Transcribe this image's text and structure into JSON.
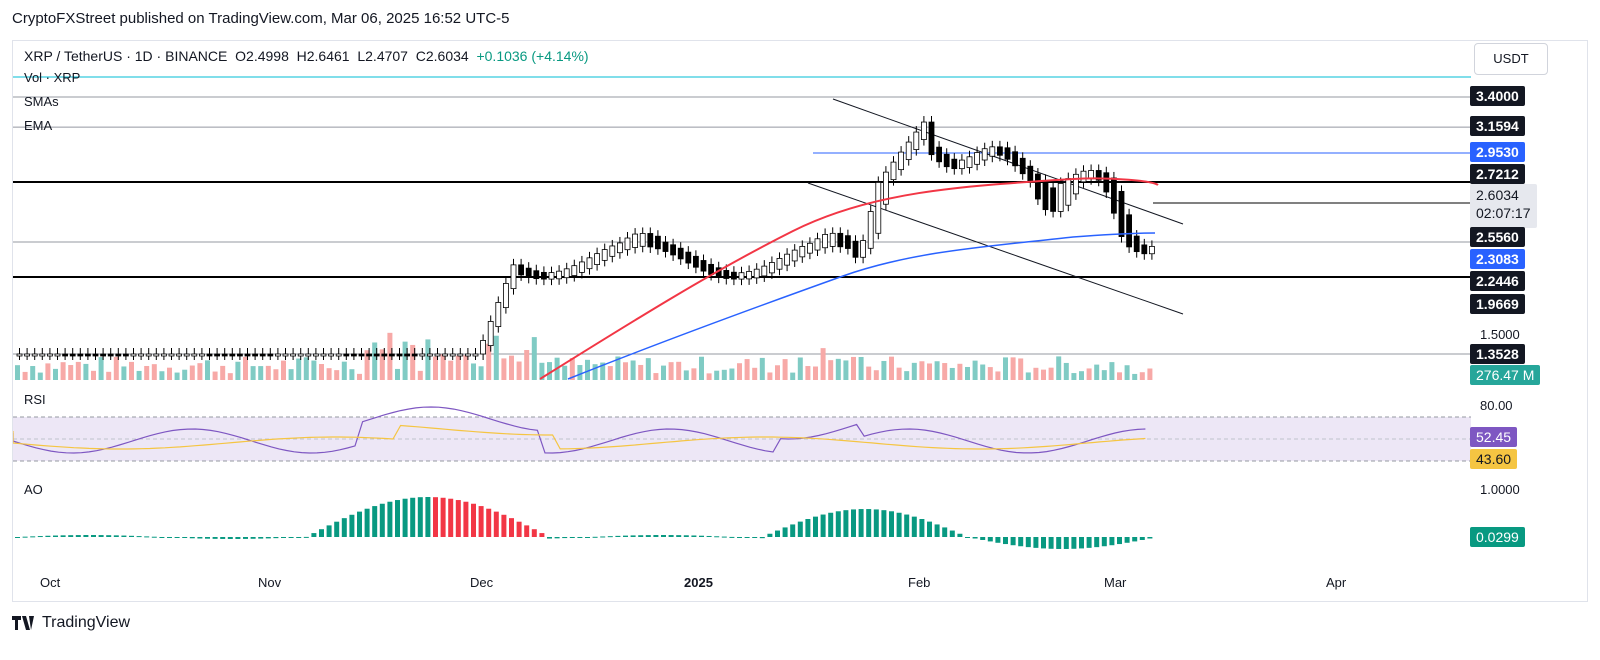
{
  "header": {
    "publisher_line": "CryptoFXStreet published on TradingView.com, Mar 06, 2025 16:52 UTC-5"
  },
  "symbol": {
    "pair": "XRP / TetherUS",
    "interval": "1D",
    "exchange": "BINANCE",
    "open": "O2.4998",
    "high": "H2.6461",
    "low": "L2.4707",
    "close": "C2.6034",
    "change": "+0.1036 (+4.14%)"
  },
  "legend": {
    "vol": "Vol · XRP",
    "smas": "SMAs",
    "ema": "EMA"
  },
  "currency_button": "USDT",
  "price_tags": {
    "p3400": "3.4000",
    "p31594": "3.1594",
    "p2953": "2.9530",
    "p27212": "2.7212",
    "last": "2.6034",
    "countdown": "02:07:17",
    "p2556": "2.5560",
    "p23083": "2.3083",
    "p22446": "2.2446",
    "p19669": "1.9669",
    "p15": "1.5000",
    "p13528": "1.3528",
    "vol": "276.47 M"
  },
  "rsi": {
    "label": "RSI",
    "level80": "80.00",
    "value": "52.45",
    "ma": "43.60"
  },
  "ao": {
    "label": "AO",
    "level": "1.0000",
    "value": "0.0299"
  },
  "x_axis": [
    "Oct",
    "Nov",
    "Dec",
    "2025",
    "Feb",
    "Mar",
    "Apr"
  ],
  "footer_brand": "TradingView",
  "colors": {
    "up": "#ffffff",
    "down": "#000000",
    "vol_up": "#80cbc4",
    "vol_down": "#f7a9a7",
    "ema_red": "#f23645",
    "sma_blue": "#2962ff",
    "rsi": "#7e57c2",
    "rsi_ma": "#f5c542",
    "ao_green": "#089981",
    "ao_red": "#f23645"
  },
  "chart_data": {
    "type": "candlestick",
    "title": "XRP / TetherUS · 1D · BINANCE",
    "x_range": [
      "Oct",
      "Apr"
    ],
    "y_price_levels": [
      3.4,
      3.1594,
      2.953,
      2.7212,
      2.6034,
      2.556,
      2.3083,
      2.2446,
      1.9669,
      1.5,
      1.3528
    ],
    "last_bar": {
      "open": 2.4998,
      "high": 2.6461,
      "low": 2.4707,
      "close": 2.6034,
      "change": 0.1036,
      "change_pct": 4.14
    },
    "horizontal_levels": [
      3.4,
      3.1594,
      2.7212,
      2.556,
      2.2446,
      1.3528
    ],
    "rsi": {
      "value": 52.45,
      "ma": 43.6,
      "upper": 80
    },
    "ao": {
      "value": 0.0299
    }
  }
}
